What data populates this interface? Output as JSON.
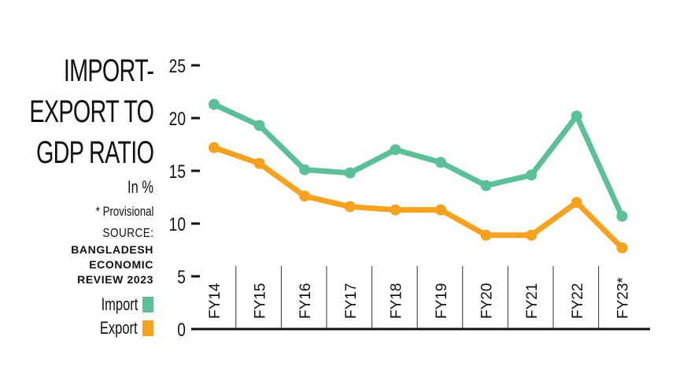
{
  "title": {
    "lines": [
      "IMPORT-",
      "EXPORT TO",
      "GDP RATIO"
    ],
    "unit": "In %",
    "note": "* Provisional",
    "source_label": "SOURCE:",
    "source_name": [
      "BANGLADESH",
      "ECONOMIC",
      "REVIEW 2023"
    ]
  },
  "legend": [
    {
      "label": "Import",
      "color": "#5bbf98"
    },
    {
      "label": "Export",
      "color": "#f6a21e"
    }
  ],
  "axis": {
    "y_ticks": [
      "25",
      "20",
      "15",
      "10",
      "5",
      "0"
    ]
  },
  "chart_data": {
    "type": "line",
    "title": "IMPORT-EXPORT TO GDP RATIO",
    "subtitle": "In %",
    "annotations": [
      "* Provisional",
      "SOURCE: BANGLADESH ECONOMIC REVIEW 2023"
    ],
    "xlabel": "",
    "ylabel": "",
    "categories": [
      "FY14",
      "FY15",
      "FY16",
      "FY17",
      "FY18",
      "FY19",
      "FY20",
      "FY21",
      "FY22",
      "FY23*"
    ],
    "series": [
      {
        "name": "Import",
        "color": "#5bbf98",
        "values": [
          21.3,
          19.3,
          15.1,
          14.8,
          17.0,
          15.8,
          13.6,
          14.6,
          20.2,
          10.7
        ]
      },
      {
        "name": "Export",
        "color": "#f6a21e",
        "values": [
          17.2,
          15.7,
          12.6,
          11.6,
          11.3,
          11.3,
          8.9,
          8.9,
          12.0,
          7.7
        ]
      }
    ],
    "ylim": [
      0,
      25
    ],
    "yticks": [
      0,
      5,
      10,
      15,
      20,
      25
    ],
    "grid": false,
    "legend_position": "left"
  }
}
